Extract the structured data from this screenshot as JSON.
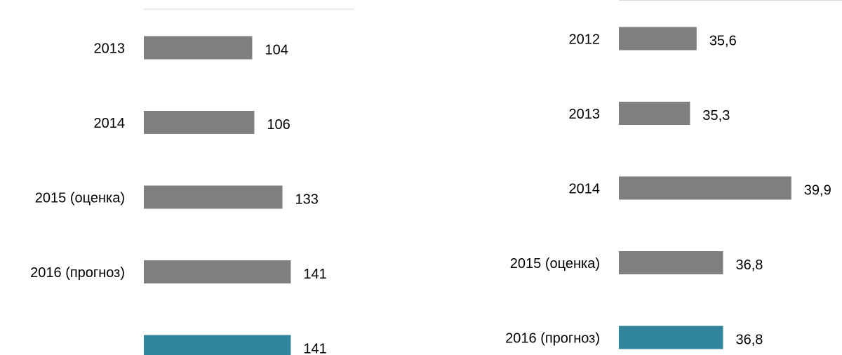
{
  "chart_data": [
    {
      "type": "bar",
      "orientation": "horizontal",
      "categories": [
        "2013",
        "2014",
        "2015 (оценка)",
        "2016 (прогноз)",
        null
      ],
      "values": [
        104,
        106,
        133,
        141,
        141
      ],
      "colors": [
        "#7f7f7f",
        "#7f7f7f",
        "#7f7f7f",
        "#7f7f7f",
        "#31859c"
      ],
      "xlim": [
        0,
        202
      ]
    },
    {
      "type": "bar",
      "orientation": "horizontal",
      "categories": [
        "2012",
        "2013",
        "2014",
        "2015 (оценка)",
        "2016 (прогноз)"
      ],
      "values": [
        35.6,
        35.3,
        39.9,
        36.8,
        36.8
      ],
      "value_labels": [
        "35,6",
        "35,3",
        "39,9",
        "36,8",
        "36,8"
      ],
      "colors": [
        "#7f7f7f",
        "#7f7f7f",
        "#7f7f7f",
        "#7f7f7f",
        "#31859c"
      ],
      "xlim": [
        32.07,
        42.2
      ]
    }
  ]
}
